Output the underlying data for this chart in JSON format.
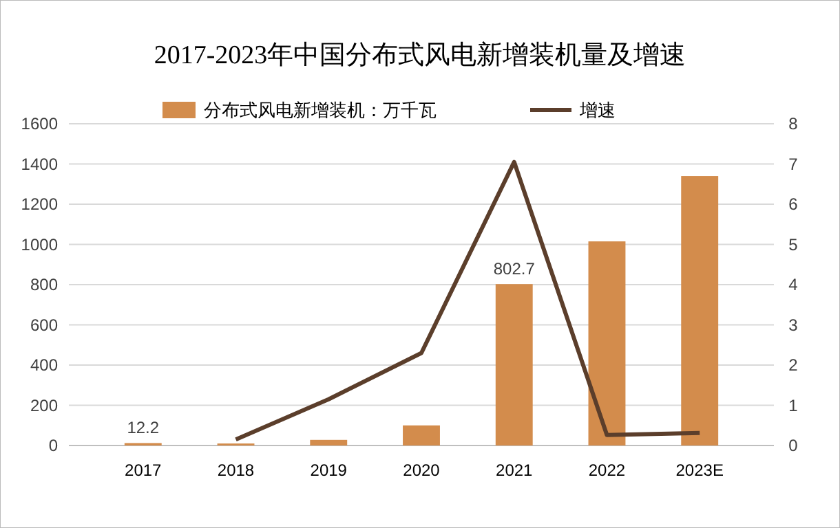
{
  "chart_data": {
    "type": "bar",
    "title": "2017-2023年中国分布式风电新增装机量及增速",
    "categories": [
      "2017",
      "2018",
      "2019",
      "2020",
      "2021",
      "2022",
      "2023E"
    ],
    "series": [
      {
        "name": "分布式风电新增装机：万千瓦",
        "color": "#d38c4c",
        "values": [
          12.2,
          10,
          28,
          100,
          802.7,
          1015,
          1340
        ],
        "value_labels": [
          "12.2",
          null,
          null,
          null,
          "802.7",
          null,
          null
        ]
      },
      {
        "name": "增速",
        "type": "line",
        "axis": "y2",
        "color": "#5b3e2b",
        "values": [
          null,
          0.15,
          1.15,
          2.3,
          7.05,
          0.26,
          0.31
        ]
      }
    ],
    "ylim": [
      0,
      1600
    ],
    "yticks": [
      0,
      200,
      400,
      600,
      800,
      1000,
      1200,
      1400,
      1600
    ],
    "y2lim": [
      0,
      8
    ],
    "y2ticks": [
      0,
      1,
      2,
      3,
      4,
      5,
      6,
      7,
      8
    ],
    "grid": "y",
    "legend": "top",
    "marker": "none",
    "line_style": "solid"
  }
}
